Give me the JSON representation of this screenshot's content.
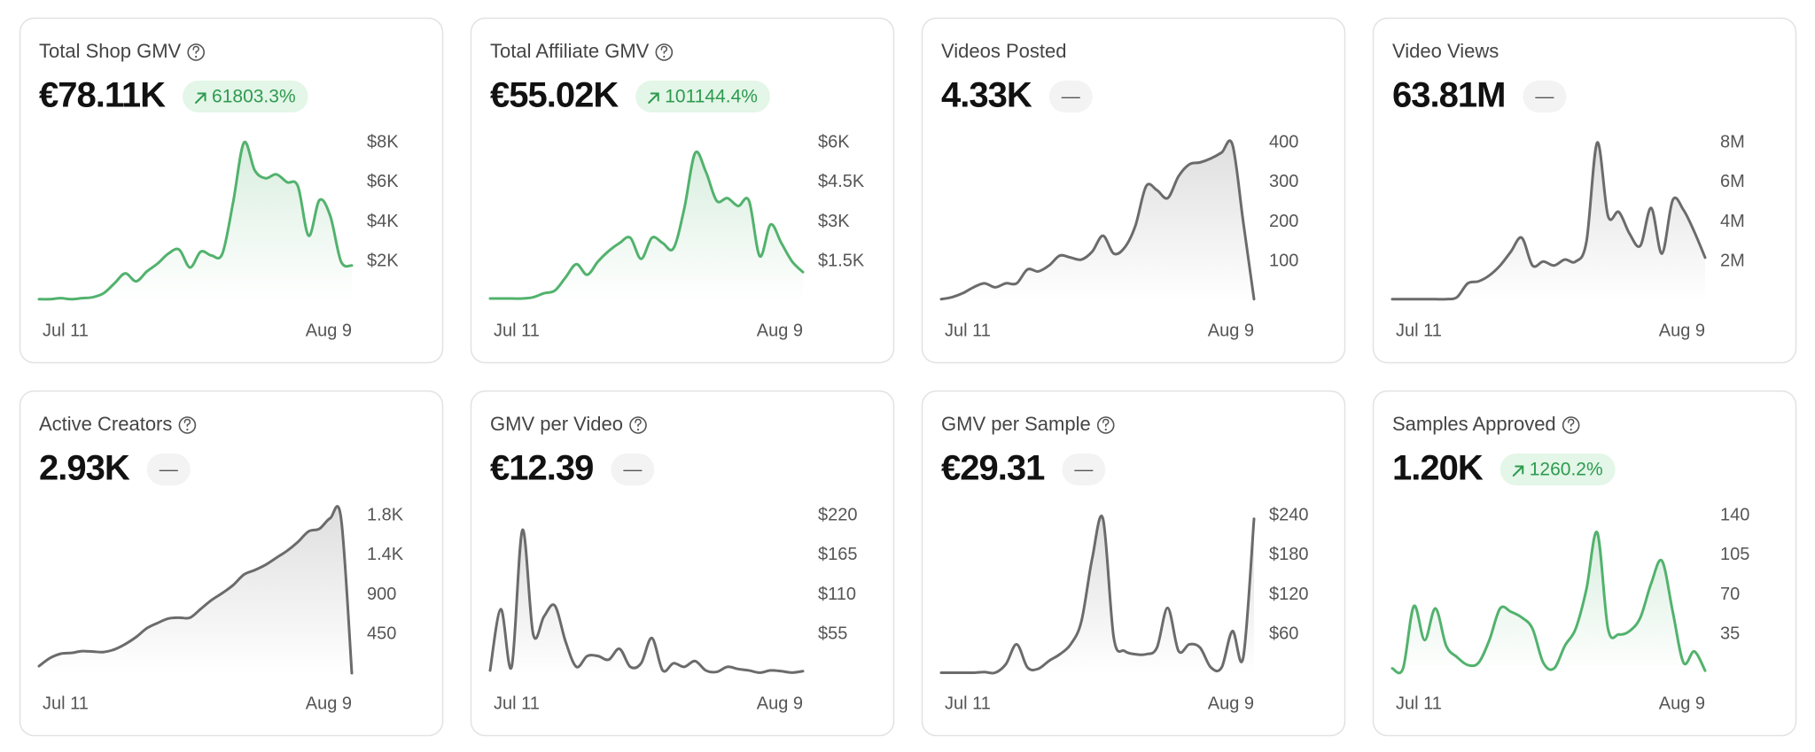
{
  "chart_data": [
    {
      "type": "line",
      "title": "Total Shop GMV",
      "headline": "€78.11K",
      "change": "61803.3%",
      "trend": "up",
      "help_icon": true,
      "categories": [
        "Jul 11",
        null,
        null,
        null,
        null,
        null,
        null,
        null,
        null,
        null,
        null,
        null,
        null,
        null,
        null,
        null,
        null,
        null,
        null,
        null,
        null,
        null,
        null,
        null,
        null,
        null,
        null,
        null,
        null,
        "Aug 9"
      ],
      "series": [
        {
          "color": "#52b26d",
          "values": [
            100,
            100,
            150,
            100,
            150,
            200,
            400,
            900,
            1400,
            1000,
            1500,
            1900,
            2400,
            2600,
            1700,
            2500,
            2300,
            2400,
            5000,
            8000,
            6600,
            6200,
            6400,
            6000,
            5800,
            3300,
            5100,
            4300,
            2000,
            1800
          ]
        }
      ],
      "ylim": [
        0,
        8000
      ],
      "yticks": [
        {
          "value": 2000,
          "label": "$2K"
        },
        {
          "value": 4000,
          "label": "$4K"
        },
        {
          "value": 6000,
          "label": "$6K"
        },
        {
          "value": 8000,
          "label": "$8K"
        }
      ],
      "grid": false
    },
    {
      "type": "line",
      "title": "Total Affiliate GMV",
      "headline": "€55.02K",
      "change": "101144.4%",
      "trend": "up",
      "help_icon": true,
      "categories": [
        "Jul 11",
        null,
        null,
        null,
        null,
        null,
        null,
        null,
        null,
        null,
        null,
        null,
        null,
        null,
        null,
        null,
        null,
        null,
        null,
        null,
        null,
        null,
        null,
        null,
        null,
        null,
        null,
        null,
        null,
        "Aug 9"
      ],
      "series": [
        {
          "color": "#52b26d",
          "values": [
            100,
            100,
            100,
            100,
            150,
            300,
            400,
            900,
            1400,
            1000,
            1500,
            1900,
            2200,
            2400,
            1600,
            2400,
            2200,
            2000,
            3500,
            5600,
            4900,
            3800,
            3900,
            3600,
            3800,
            1700,
            2900,
            2200,
            1500,
            1100
          ]
        }
      ],
      "ylim": [
        0,
        6000
      ],
      "yticks": [
        {
          "value": 1500,
          "label": "$1.5K"
        },
        {
          "value": 3000,
          "label": "$3K"
        },
        {
          "value": 4500,
          "label": "$4.5K"
        },
        {
          "value": 6000,
          "label": "$6K"
        }
      ],
      "grid": false
    },
    {
      "type": "line",
      "title": "Videos Posted",
      "headline": "4.33K",
      "change": "—",
      "help_icon": false,
      "categories": [
        "Jul 11",
        null,
        null,
        null,
        null,
        null,
        null,
        null,
        null,
        null,
        null,
        null,
        null,
        null,
        null,
        null,
        null,
        null,
        null,
        null,
        null,
        null,
        null,
        null,
        null,
        null,
        null,
        null,
        null,
        "Aug 9"
      ],
      "series": [
        {
          "color": "#6b6b6b",
          "values": [
            5,
            10,
            20,
            35,
            45,
            35,
            45,
            45,
            80,
            75,
            90,
            115,
            110,
            105,
            125,
            165,
            120,
            135,
            190,
            290,
            280,
            260,
            315,
            345,
            350,
            360,
            375,
            395,
            200,
            5
          ]
        }
      ],
      "ylim": [
        0,
        400
      ],
      "yticks": [
        100,
        200,
        300,
        400
      ],
      "grid": false
    },
    {
      "type": "line",
      "title": "Video Views",
      "headline": "63.81M",
      "change": "—",
      "help_icon": false,
      "categories": [
        "Jul 11",
        null,
        null,
        null,
        null,
        null,
        null,
        null,
        null,
        null,
        null,
        null,
        null,
        null,
        null,
        null,
        null,
        null,
        null,
        null,
        null,
        null,
        null,
        null,
        null,
        null,
        null,
        null,
        null,
        "Aug 9"
      ],
      "series": [
        {
          "color": "#6b6b6b",
          "values": [
            100000,
            100000,
            100000,
            100000,
            100000,
            100000,
            200000,
            900000,
            1000000,
            1300000,
            1800000,
            2500000,
            3200000,
            1800000,
            2000000,
            1800000,
            2100000,
            2000000,
            3000000,
            8000000,
            4300000,
            4500000,
            3400000,
            2800000,
            4700000,
            2400000,
            5100000,
            4600000,
            3500000,
            2200000
          ]
        }
      ],
      "ylim": [
        0,
        8000000
      ],
      "yticks": [
        {
          "value": 2000000,
          "label": "2M"
        },
        {
          "value": 4000000,
          "label": "4M"
        },
        {
          "value": 6000000,
          "label": "6M"
        },
        {
          "value": 8000000,
          "label": "8M"
        }
      ],
      "grid": false
    },
    {
      "type": "line",
      "title": "Active Creators",
      "headline": "2.93K",
      "change": "—",
      "help_icon": true,
      "categories": [
        "Jul 11",
        null,
        null,
        null,
        null,
        null,
        null,
        null,
        null,
        null,
        null,
        null,
        null,
        null,
        null,
        null,
        null,
        null,
        null,
        null,
        null,
        null,
        null,
        null,
        null,
        null,
        null,
        null,
        null,
        "Aug 9"
      ],
      "series": [
        {
          "color": "#6b6b6b",
          "values": [
            90,
            180,
            230,
            240,
            260,
            255,
            250,
            280,
            340,
            420,
            520,
            580,
            630,
            640,
            640,
            740,
            840,
            920,
            1010,
            1130,
            1180,
            1240,
            1320,
            1400,
            1500,
            1620,
            1650,
            1770,
            1770,
            10
          ]
        }
      ],
      "ylim": [
        0,
        1800
      ],
      "yticks": [
        450,
        900,
        {
          "value": 1350,
          "label": "1.4K"
        },
        {
          "value": 1800,
          "label": "1.8K"
        }
      ],
      "grid": false
    },
    {
      "type": "line",
      "title": "GMV per Video",
      "headline": "€12.39",
      "change": "—",
      "help_icon": true,
      "categories": [
        "Jul 11",
        null,
        null,
        null,
        null,
        null,
        null,
        null,
        null,
        null,
        null,
        null,
        null,
        null,
        null,
        null,
        null,
        null,
        null,
        null,
        null,
        null,
        null,
        null,
        null,
        null,
        null,
        null,
        null,
        "Aug 9"
      ],
      "series": [
        {
          "color": "#6b6b6b",
          "values": [
            5,
            90,
            10,
            200,
            55,
            80,
            95,
            45,
            10,
            25,
            25,
            20,
            35,
            10,
            15,
            50,
            5,
            15,
            10,
            18,
            5,
            3,
            10,
            7,
            5,
            2,
            5,
            4,
            2,
            4
          ]
        }
      ],
      "ylim": [
        0,
        220
      ],
      "yticks": [
        {
          "value": 55,
          "label": "$55"
        },
        {
          "value": 110,
          "label": "$110"
        },
        {
          "value": 165,
          "label": "$165"
        },
        {
          "value": 220,
          "label": "$220"
        }
      ],
      "grid": false
    },
    {
      "type": "line",
      "title": "GMV per Sample",
      "headline": "€29.31",
      "change": "—",
      "help_icon": true,
      "categories": [
        "Jul 11",
        null,
        null,
        null,
        null,
        null,
        null,
        null,
        null,
        null,
        null,
        null,
        null,
        null,
        null,
        null,
        null,
        null,
        null,
        null,
        null,
        null,
        null,
        null,
        null,
        null,
        null,
        null,
        null,
        "Aug 9"
      ],
      "series": [
        {
          "color": "#6b6b6b",
          "values": [
            2,
            2,
            2,
            2,
            3,
            2,
            15,
            45,
            10,
            8,
            20,
            30,
            45,
            80,
            175,
            235,
            55,
            35,
            30,
            30,
            40,
            100,
            35,
            45,
            40,
            10,
            10,
            65,
            25,
            235
          ]
        }
      ],
      "ylim": [
        0,
        240
      ],
      "yticks": [
        {
          "value": 60,
          "label": "$60"
        },
        {
          "value": 120,
          "label": "$120"
        },
        {
          "value": 180,
          "label": "$180"
        },
        {
          "value": 240,
          "label": "$240"
        }
      ],
      "grid": false
    },
    {
      "type": "line",
      "title": "Samples Approved",
      "headline": "1.20K",
      "change": "1260.2%",
      "trend": "up",
      "help_icon": true,
      "categories": [
        "Jul 11",
        null,
        null,
        null,
        null,
        null,
        null,
        null,
        null,
        null,
        null,
        null,
        null,
        null,
        null,
        null,
        null,
        null,
        null,
        null,
        null,
        null,
        null,
        null,
        null,
        null,
        null,
        null,
        null,
        "Aug 9"
      ],
      "series": [
        {
          "color": "#52b26d",
          "values": [
            5,
            5,
            60,
            30,
            58,
            25,
            15,
            8,
            10,
            30,
            58,
            55,
            50,
            40,
            10,
            5,
            25,
            40,
            75,
            125,
            40,
            35,
            38,
            50,
            80,
            100,
            55,
            10,
            20,
            3
          ]
        }
      ],
      "ylim": [
        0,
        140
      ],
      "yticks": [
        35,
        70,
        105,
        140
      ],
      "grid": false
    }
  ]
}
